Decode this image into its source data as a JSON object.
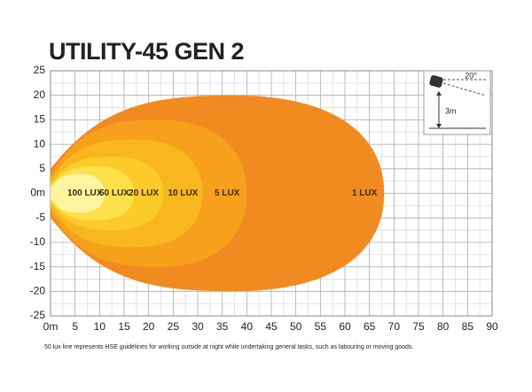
{
  "chart_data": {
    "type": "isolux",
    "title": "UTILITY-45 GEN 2",
    "note": "50 lux line represents HSE guidelines for working outside at night while undertaking general tasks, such as labouring or moving goods.",
    "xlim": [
      0,
      90
    ],
    "xticks": [
      {
        "value": 0,
        "label": "0m"
      },
      5,
      10,
      15,
      20,
      25,
      30,
      35,
      40,
      45,
      50,
      55,
      60,
      65,
      70,
      75,
      80,
      85,
      90
    ],
    "ylim": [
      -25,
      25
    ],
    "yticks": [
      -25,
      -20,
      -15,
      -10,
      -5,
      {
        "value": 0,
        "label": "0m"
      },
      5,
      10,
      15,
      20,
      25
    ],
    "grid": true,
    "series": [
      {
        "name": "1 LUX",
        "color": "#f28a22",
        "reach": 68,
        "half_width": 20
      },
      {
        "name": "5 LUX",
        "color": "#f6a01c",
        "reach": 40,
        "half_width": 15
      },
      {
        "name": "10 LUX",
        "color": "#f9b71f",
        "reach": 31,
        "half_width": 11
      },
      {
        "name": "20 LUX",
        "color": "#fccb2a",
        "reach": 23,
        "half_width": 7.5
      },
      {
        "name": "50 LUX",
        "color": "#fde04a",
        "reach": 17,
        "half_width": 5.5
      },
      {
        "name": "100 LUX",
        "color": "#fff4a0",
        "reach": 11,
        "half_width": 4
      }
    ],
    "inset": {
      "angle_label": "20°",
      "height_label": "3m"
    }
  }
}
